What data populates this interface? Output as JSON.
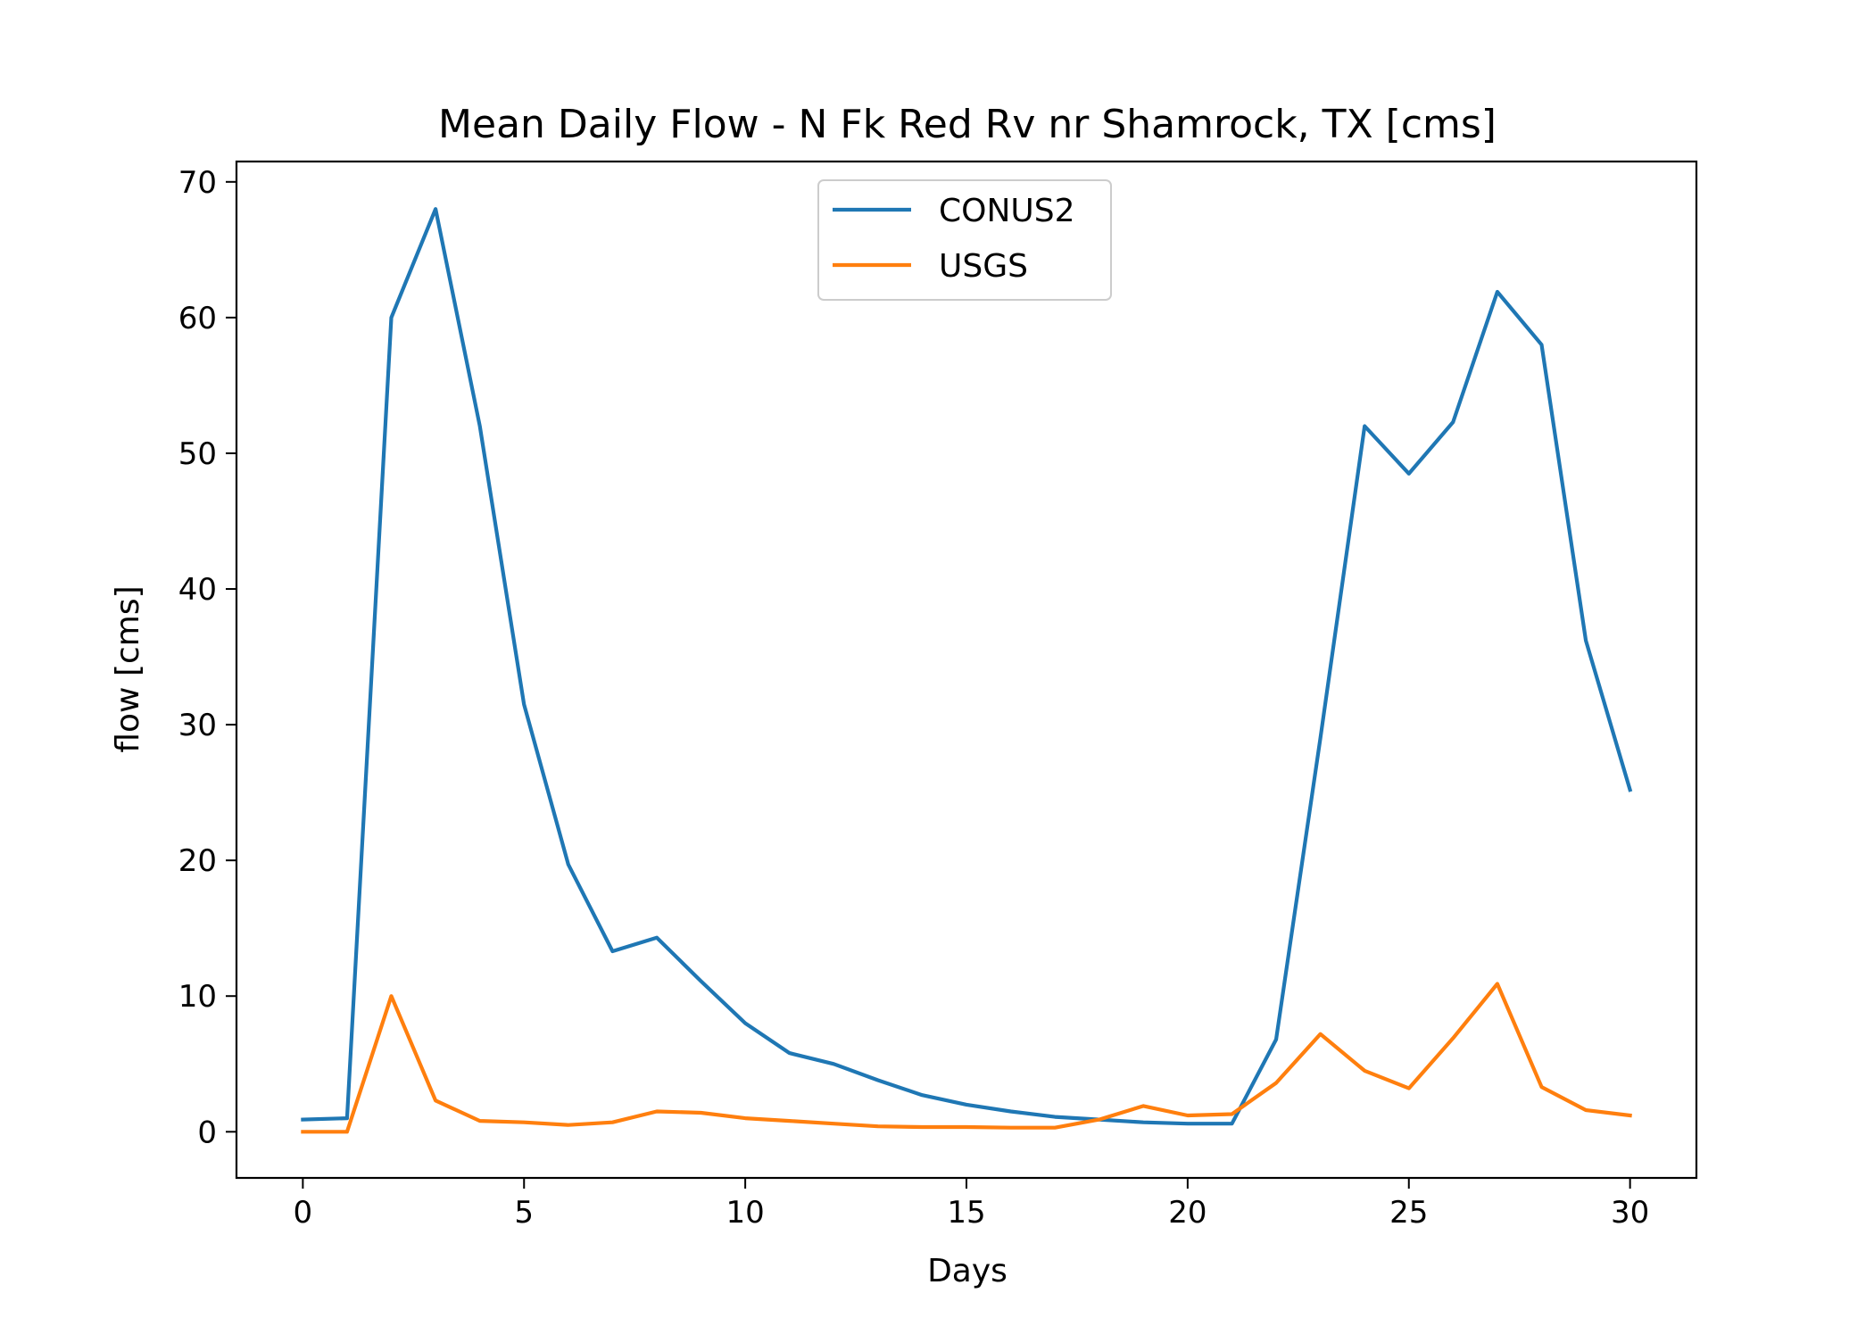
{
  "chart_data": {
    "type": "line",
    "title": "Mean Daily Flow - N Fk Red Rv nr Shamrock, TX [cms]",
    "xlabel": "Days",
    "ylabel": "flow [cms]",
    "xlim": [
      -1.5,
      31.5
    ],
    "ylim": [
      -3.4,
      71.5
    ],
    "xticks": [
      0,
      5,
      10,
      15,
      20,
      25,
      30
    ],
    "yticks": [
      0,
      10,
      20,
      30,
      40,
      50,
      60,
      70
    ],
    "grid": false,
    "legend_position": "upper center",
    "x": [
      0,
      1,
      2,
      3,
      4,
      5,
      6,
      7,
      8,
      9,
      10,
      11,
      12,
      13,
      14,
      15,
      16,
      17,
      18,
      19,
      20,
      21,
      22,
      23,
      24,
      25,
      26,
      27,
      28,
      29,
      30
    ],
    "series": [
      {
        "name": "CONUS2",
        "color": "#1f77b4",
        "values": [
          0.9,
          1.0,
          60.0,
          68.0,
          52.0,
          31.5,
          19.7,
          13.3,
          14.3,
          11.1,
          8.0,
          5.8,
          5.0,
          3.8,
          2.7,
          2.0,
          1.5,
          1.1,
          0.9,
          0.7,
          0.6,
          0.6,
          6.8,
          29.0,
          52.0,
          48.5,
          52.3,
          61.9,
          58.0,
          36.2,
          25.2
        ]
      },
      {
        "name": "USGS",
        "color": "#ff7f0e",
        "values": [
          0.0,
          0.0,
          10.0,
          2.3,
          0.8,
          0.7,
          0.5,
          0.7,
          1.5,
          1.4,
          1.0,
          0.8,
          0.6,
          0.4,
          0.35,
          0.35,
          0.3,
          0.3,
          0.9,
          1.9,
          1.2,
          1.3,
          3.6,
          7.2,
          4.5,
          3.2,
          6.9,
          10.9,
          3.3,
          1.6,
          1.2
        ]
      }
    ]
  }
}
